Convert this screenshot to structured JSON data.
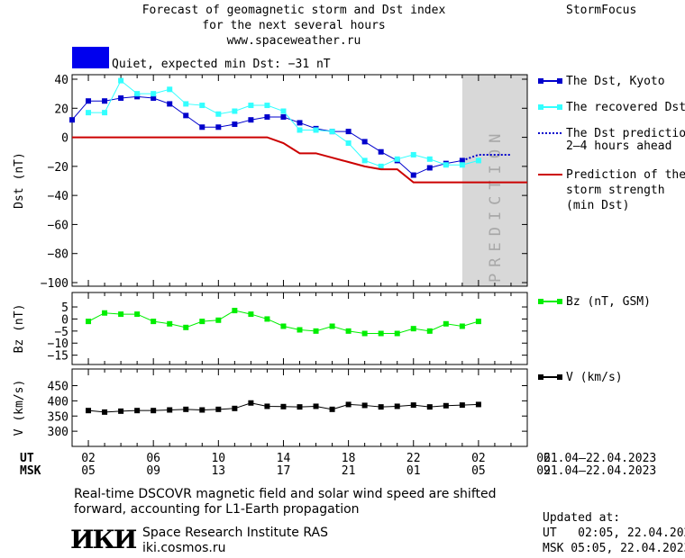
{
  "header": {
    "title_line1": "Forecast of geomagnetic storm and Dst index",
    "title_line2": "for the next several hours",
    "url": "www.spaceweather.ru",
    "brand": "StormFocus"
  },
  "status": {
    "color": "#0000ee",
    "text": "Quiet, expected min Dst: −31 nT"
  },
  "legend": {
    "dst_kyoto": "The Dst, Kyoto",
    "recovered": "The recovered Dst",
    "prediction_1": "The Dst prediction",
    "prediction_2": "2–4 hours ahead",
    "storm_1": "Prediction of the",
    "storm_2": "storm strength",
    "storm_3": "(min Dst)",
    "bz": "Bz (nT, GSM)",
    "v": "V (km/s)"
  },
  "prediction_band_label": "PREDICTION",
  "time_axis": {
    "ut_label": "UT",
    "msk_label": "MSK",
    "ut_ticks": [
      "02",
      "06",
      "10",
      "14",
      "18",
      "22",
      "02",
      "06"
    ],
    "msk_ticks": [
      "05",
      "09",
      "13",
      "17",
      "21",
      "01",
      "05",
      "09"
    ],
    "ut_range": "21.04–22.04.2023",
    "msk_range": "21.04–22.04.2023"
  },
  "footer": {
    "note_line1": "Real-time DSCOVR magnetic field and solar wind speed are shifted",
    "note_line2": "forward, accounting for L1-Earth propagation",
    "logo": "ИКИ",
    "institute": "Space Research Institute RAS",
    "site": "iki.cosmos.ru",
    "updated_label": "Updated at:",
    "updated_ut": "UT   02:05, 22.04.2023",
    "updated_msk": "MSK 05:05, 22.04.2023"
  },
  "chart_data": [
    {
      "type": "line",
      "ylabel": "Dst (nT)",
      "ylim": [
        -100,
        40
      ],
      "yticks": [
        40,
        20,
        0,
        -20,
        -40,
        -60,
        -80,
        -100
      ],
      "x_unit": "hours since 01 UT 21.04.2023",
      "xlim": [
        0,
        28
      ],
      "prediction_band": [
        24,
        28
      ],
      "colors": {
        "dst_kyoto": "#0000cc",
        "recovered": "#33ffff",
        "prediction": "#0000cc",
        "storm": "#cc0000"
      },
      "series": [
        {
          "name": "The Dst, Kyoto",
          "x": [
            0,
            1,
            2,
            3,
            4,
            5,
            6,
            7,
            8,
            9,
            10,
            11,
            12,
            13,
            14,
            15,
            16,
            17,
            18,
            19,
            20,
            21,
            22,
            23,
            24
          ],
          "values": [
            12,
            25,
            25,
            27,
            28,
            27,
            23,
            15,
            7,
            7,
            9,
            12,
            14,
            14,
            10,
            6,
            4,
            4,
            -3,
            -10,
            -16,
            -26,
            -21,
            -18,
            -16
          ]
        },
        {
          "name": "The recovered Dst",
          "x": [
            1,
            2,
            3,
            4,
            5,
            6,
            7,
            8,
            9,
            10,
            11,
            12,
            13,
            14,
            15,
            16,
            17,
            18,
            19,
            20,
            21,
            22,
            23,
            24,
            25
          ],
          "values": [
            17,
            17,
            39,
            30,
            30,
            33,
            23,
            22,
            16,
            18,
            22,
            22,
            18,
            5,
            5,
            4,
            -4,
            -16,
            -20,
            -15,
            -12,
            -15,
            -19,
            -19,
            -16
          ]
        },
        {
          "name": "The Dst prediction 2–4 hours ahead",
          "x": [
            24,
            25,
            26,
            27
          ],
          "values": [
            -16,
            -12,
            -12,
            -12
          ]
        },
        {
          "name": "Prediction of the storm strength (min Dst)",
          "x": [
            0,
            12,
            13,
            14,
            15,
            16,
            17,
            18,
            19,
            20,
            21,
            22,
            23,
            24,
            28
          ],
          "values": [
            0,
            0,
            -4,
            -11,
            -11,
            -14,
            -17,
            -20,
            -22,
            -22,
            -31,
            -31,
            -31,
            -31,
            -31
          ]
        }
      ]
    },
    {
      "type": "line",
      "ylabel": "Bz (nT)",
      "ylim": [
        -17,
        8
      ],
      "yticks": [
        5,
        0,
        -5,
        -10,
        -15
      ],
      "xlim": [
        0,
        28
      ],
      "series": [
        {
          "name": "Bz (nT, GSM)",
          "color": "#00ee00",
          "x": [
            1,
            2,
            3,
            4,
            5,
            6,
            7,
            8,
            9,
            10,
            11,
            12,
            13,
            14,
            15,
            16,
            17,
            18,
            19,
            20,
            21,
            22,
            23,
            24,
            25
          ],
          "values": [
            -1,
            2.5,
            2,
            2,
            -1,
            -2,
            -3.5,
            -1,
            -0.5,
            3.5,
            2,
            0,
            -3,
            -4.5,
            -5,
            -3,
            -5,
            -6,
            -6,
            -6,
            -4,
            -5,
            -2,
            -3,
            -1
          ]
        }
      ]
    },
    {
      "type": "line",
      "ylabel": "V (km/s)",
      "ylim": [
        250,
        490
      ],
      "yticks": [
        450,
        400,
        350,
        300
      ],
      "xlim": [
        0,
        28
      ],
      "series": [
        {
          "name": "V (km/s)",
          "color": "#000000",
          "x": [
            1,
            2,
            3,
            4,
            5,
            6,
            7,
            8,
            9,
            10,
            11,
            12,
            13,
            14,
            15,
            16,
            17,
            18,
            19,
            20,
            21,
            22,
            23,
            24,
            25
          ],
          "values": [
            368,
            363,
            366,
            368,
            368,
            370,
            372,
            370,
            372,
            375,
            393,
            382,
            381,
            380,
            382,
            372,
            388,
            385,
            380,
            382,
            386,
            380,
            384,
            386,
            388
          ]
        }
      ]
    }
  ]
}
